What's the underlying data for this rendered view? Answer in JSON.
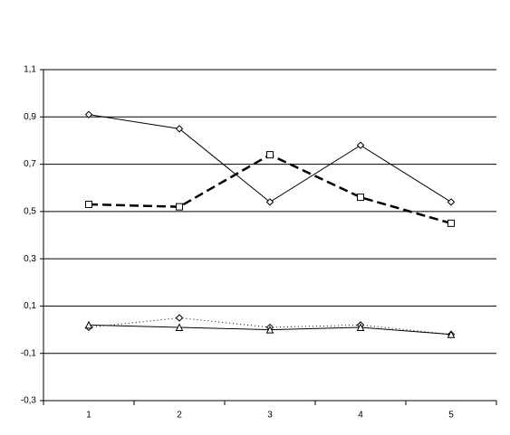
{
  "chart_data": {
    "type": "line",
    "categories": [
      "1",
      "2",
      "3",
      "4",
      "5"
    ],
    "series": [
      {
        "color": "#000000",
        "line_style": "solid",
        "line_width": 1,
        "marker": "diamond",
        "values": [
          0.91,
          0.85,
          0.54,
          0.78,
          0.54
        ]
      },
      {
        "color": "#000000",
        "line_style": "dashed",
        "line_width": 2.5,
        "marker": "square",
        "values": [
          0.53,
          0.52,
          0.74,
          0.56,
          0.45
        ]
      },
      {
        "color": "#000000",
        "line_style": "dotted",
        "line_width": 1,
        "marker": "diamond",
        "values": [
          0.01,
          0.05,
          0.01,
          0.02,
          -0.02
        ]
      },
      {
        "color": "#000000",
        "line_style": "solid",
        "line_width": 1,
        "marker": "triangle",
        "values": [
          0.02,
          0.01,
          0.0,
          0.01,
          -0.02
        ]
      }
    ],
    "ylim": [
      -0.3,
      1.1
    ],
    "yticks": [
      {
        "value": -0.3,
        "label": "-0,3"
      },
      {
        "value": -0.1,
        "label": "-0,1"
      },
      {
        "value": 0.1,
        "label": "0,1"
      },
      {
        "value": 0.3,
        "label": "0,3"
      },
      {
        "value": 0.5,
        "label": "0,5"
      },
      {
        "value": 0.7,
        "label": "0,7"
      },
      {
        "value": 0.9,
        "label": "0,9"
      },
      {
        "value": 1.1,
        "label": "1,1"
      }
    ],
    "grid": true
  }
}
